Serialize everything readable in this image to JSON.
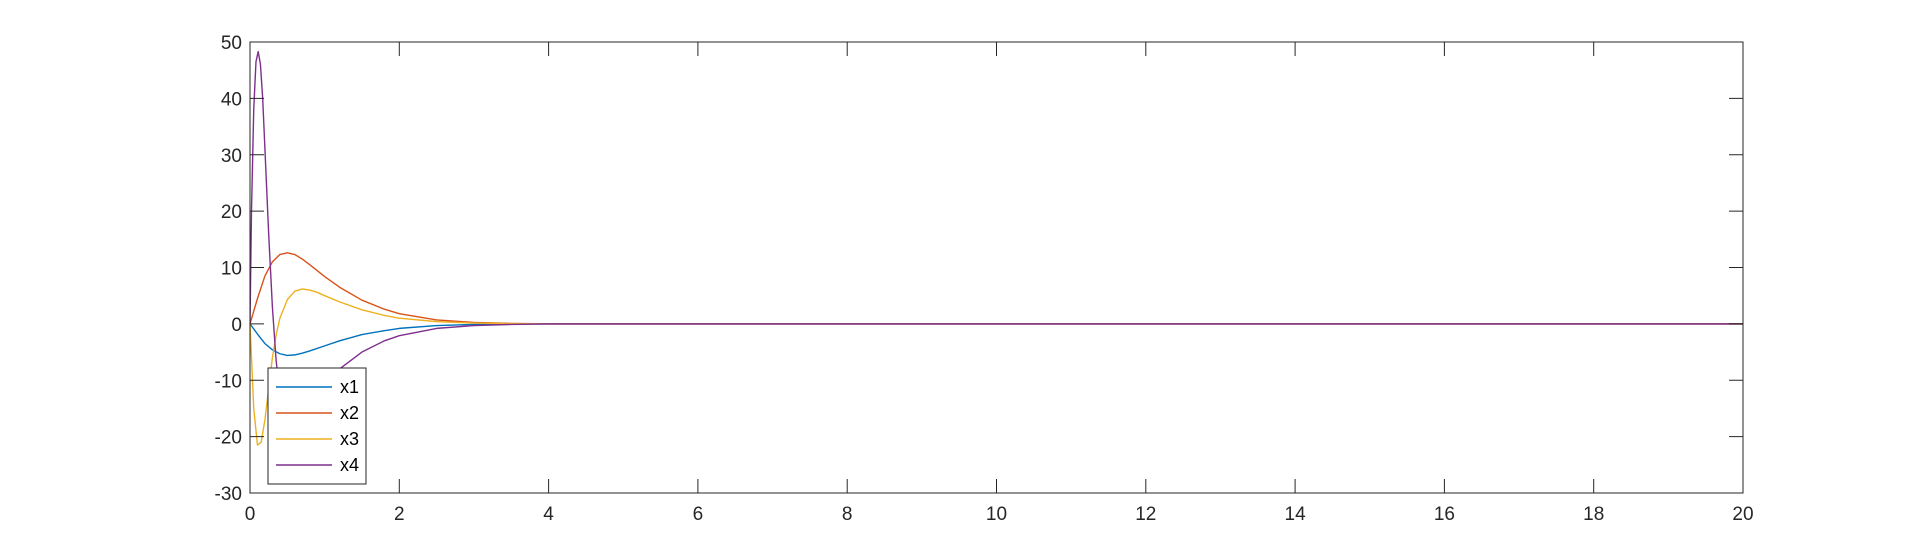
{
  "chart_data": {
    "type": "line",
    "title": "",
    "xlabel": "",
    "ylabel": "",
    "xlim": [
      0,
      20
    ],
    "ylim": [
      -30,
      50
    ],
    "xticks": [
      0,
      2,
      4,
      6,
      8,
      10,
      12,
      14,
      16,
      18,
      20
    ],
    "yticks": [
      -30,
      -20,
      -10,
      0,
      10,
      20,
      30,
      40,
      50
    ],
    "xtick_labels": [
      "0",
      "2",
      "4",
      "6",
      "8",
      "10",
      "12",
      "14",
      "16",
      "18",
      "20"
    ],
    "ytick_labels": [
      "-30",
      "-20",
      "-10",
      "0",
      "10",
      "20",
      "30",
      "40",
      "50"
    ],
    "grid": false,
    "legend_position": "bottom-left",
    "series": [
      {
        "name": "x1",
        "color": "#0072BD",
        "x": [
          0,
          0.1,
          0.2,
          0.3,
          0.4,
          0.5,
          0.6,
          0.7,
          0.8,
          1.0,
          1.2,
          1.5,
          1.8,
          2.0,
          2.5,
          3.0,
          3.5,
          4.0,
          5.0,
          20.0
        ],
        "y": [
          0,
          -1.8,
          -3.5,
          -4.6,
          -5.3,
          -5.6,
          -5.5,
          -5.2,
          -4.8,
          -3.9,
          -3.0,
          -1.9,
          -1.2,
          -0.8,
          -0.3,
          -0.1,
          -0.04,
          0,
          0,
          0
        ]
      },
      {
        "name": "x2",
        "color": "#D95319",
        "x": [
          0,
          0.1,
          0.2,
          0.3,
          0.4,
          0.5,
          0.6,
          0.7,
          0.8,
          1.0,
          1.2,
          1.5,
          1.8,
          2.0,
          2.5,
          3.0,
          3.5,
          4.0,
          5.0,
          20.0
        ],
        "y": [
          0,
          4.5,
          8.5,
          11.0,
          12.3,
          12.6,
          12.3,
          11.5,
          10.5,
          8.4,
          6.5,
          4.2,
          2.6,
          1.8,
          0.7,
          0.25,
          0.08,
          0,
          0,
          0
        ]
      },
      {
        "name": "x3",
        "color": "#EDB120",
        "x": [
          0,
          0.05,
          0.1,
          0.15,
          0.2,
          0.25,
          0.3,
          0.35,
          0.4,
          0.5,
          0.6,
          0.7,
          0.8,
          0.9,
          1.0,
          1.2,
          1.5,
          1.8,
          2.0,
          2.5,
          3.0,
          3.5,
          4.0,
          5.0,
          20.0
        ],
        "y": [
          0,
          -15.0,
          -21.5,
          -21.0,
          -17.0,
          -11.5,
          -6.0,
          -2.0,
          1.0,
          4.3,
          5.8,
          6.2,
          6.0,
          5.6,
          5.0,
          3.9,
          2.5,
          1.5,
          1.0,
          0.4,
          0.15,
          0.05,
          0,
          0,
          0
        ]
      },
      {
        "name": "x4",
        "color": "#7E2F8E",
        "x": [
          0,
          0.02,
          0.05,
          0.08,
          0.11,
          0.14,
          0.17,
          0.2,
          0.25,
          0.3,
          0.35,
          0.4,
          0.45,
          0.5,
          0.6,
          0.7,
          0.8,
          1.0,
          1.2,
          1.5,
          1.8,
          2.0,
          2.5,
          3.0,
          3.5,
          4.0,
          5.0,
          20.0
        ],
        "y": [
          0,
          20.0,
          38.0,
          46.5,
          48.3,
          46.0,
          40.0,
          31.0,
          16.0,
          3.0,
          -6.5,
          -12.5,
          -15.5,
          -16.5,
          -16.2,
          -15.0,
          -13.5,
          -10.5,
          -8.0,
          -5.0,
          -3.0,
          -2.1,
          -0.8,
          -0.3,
          -0.1,
          0,
          0,
          0
        ]
      }
    ]
  }
}
